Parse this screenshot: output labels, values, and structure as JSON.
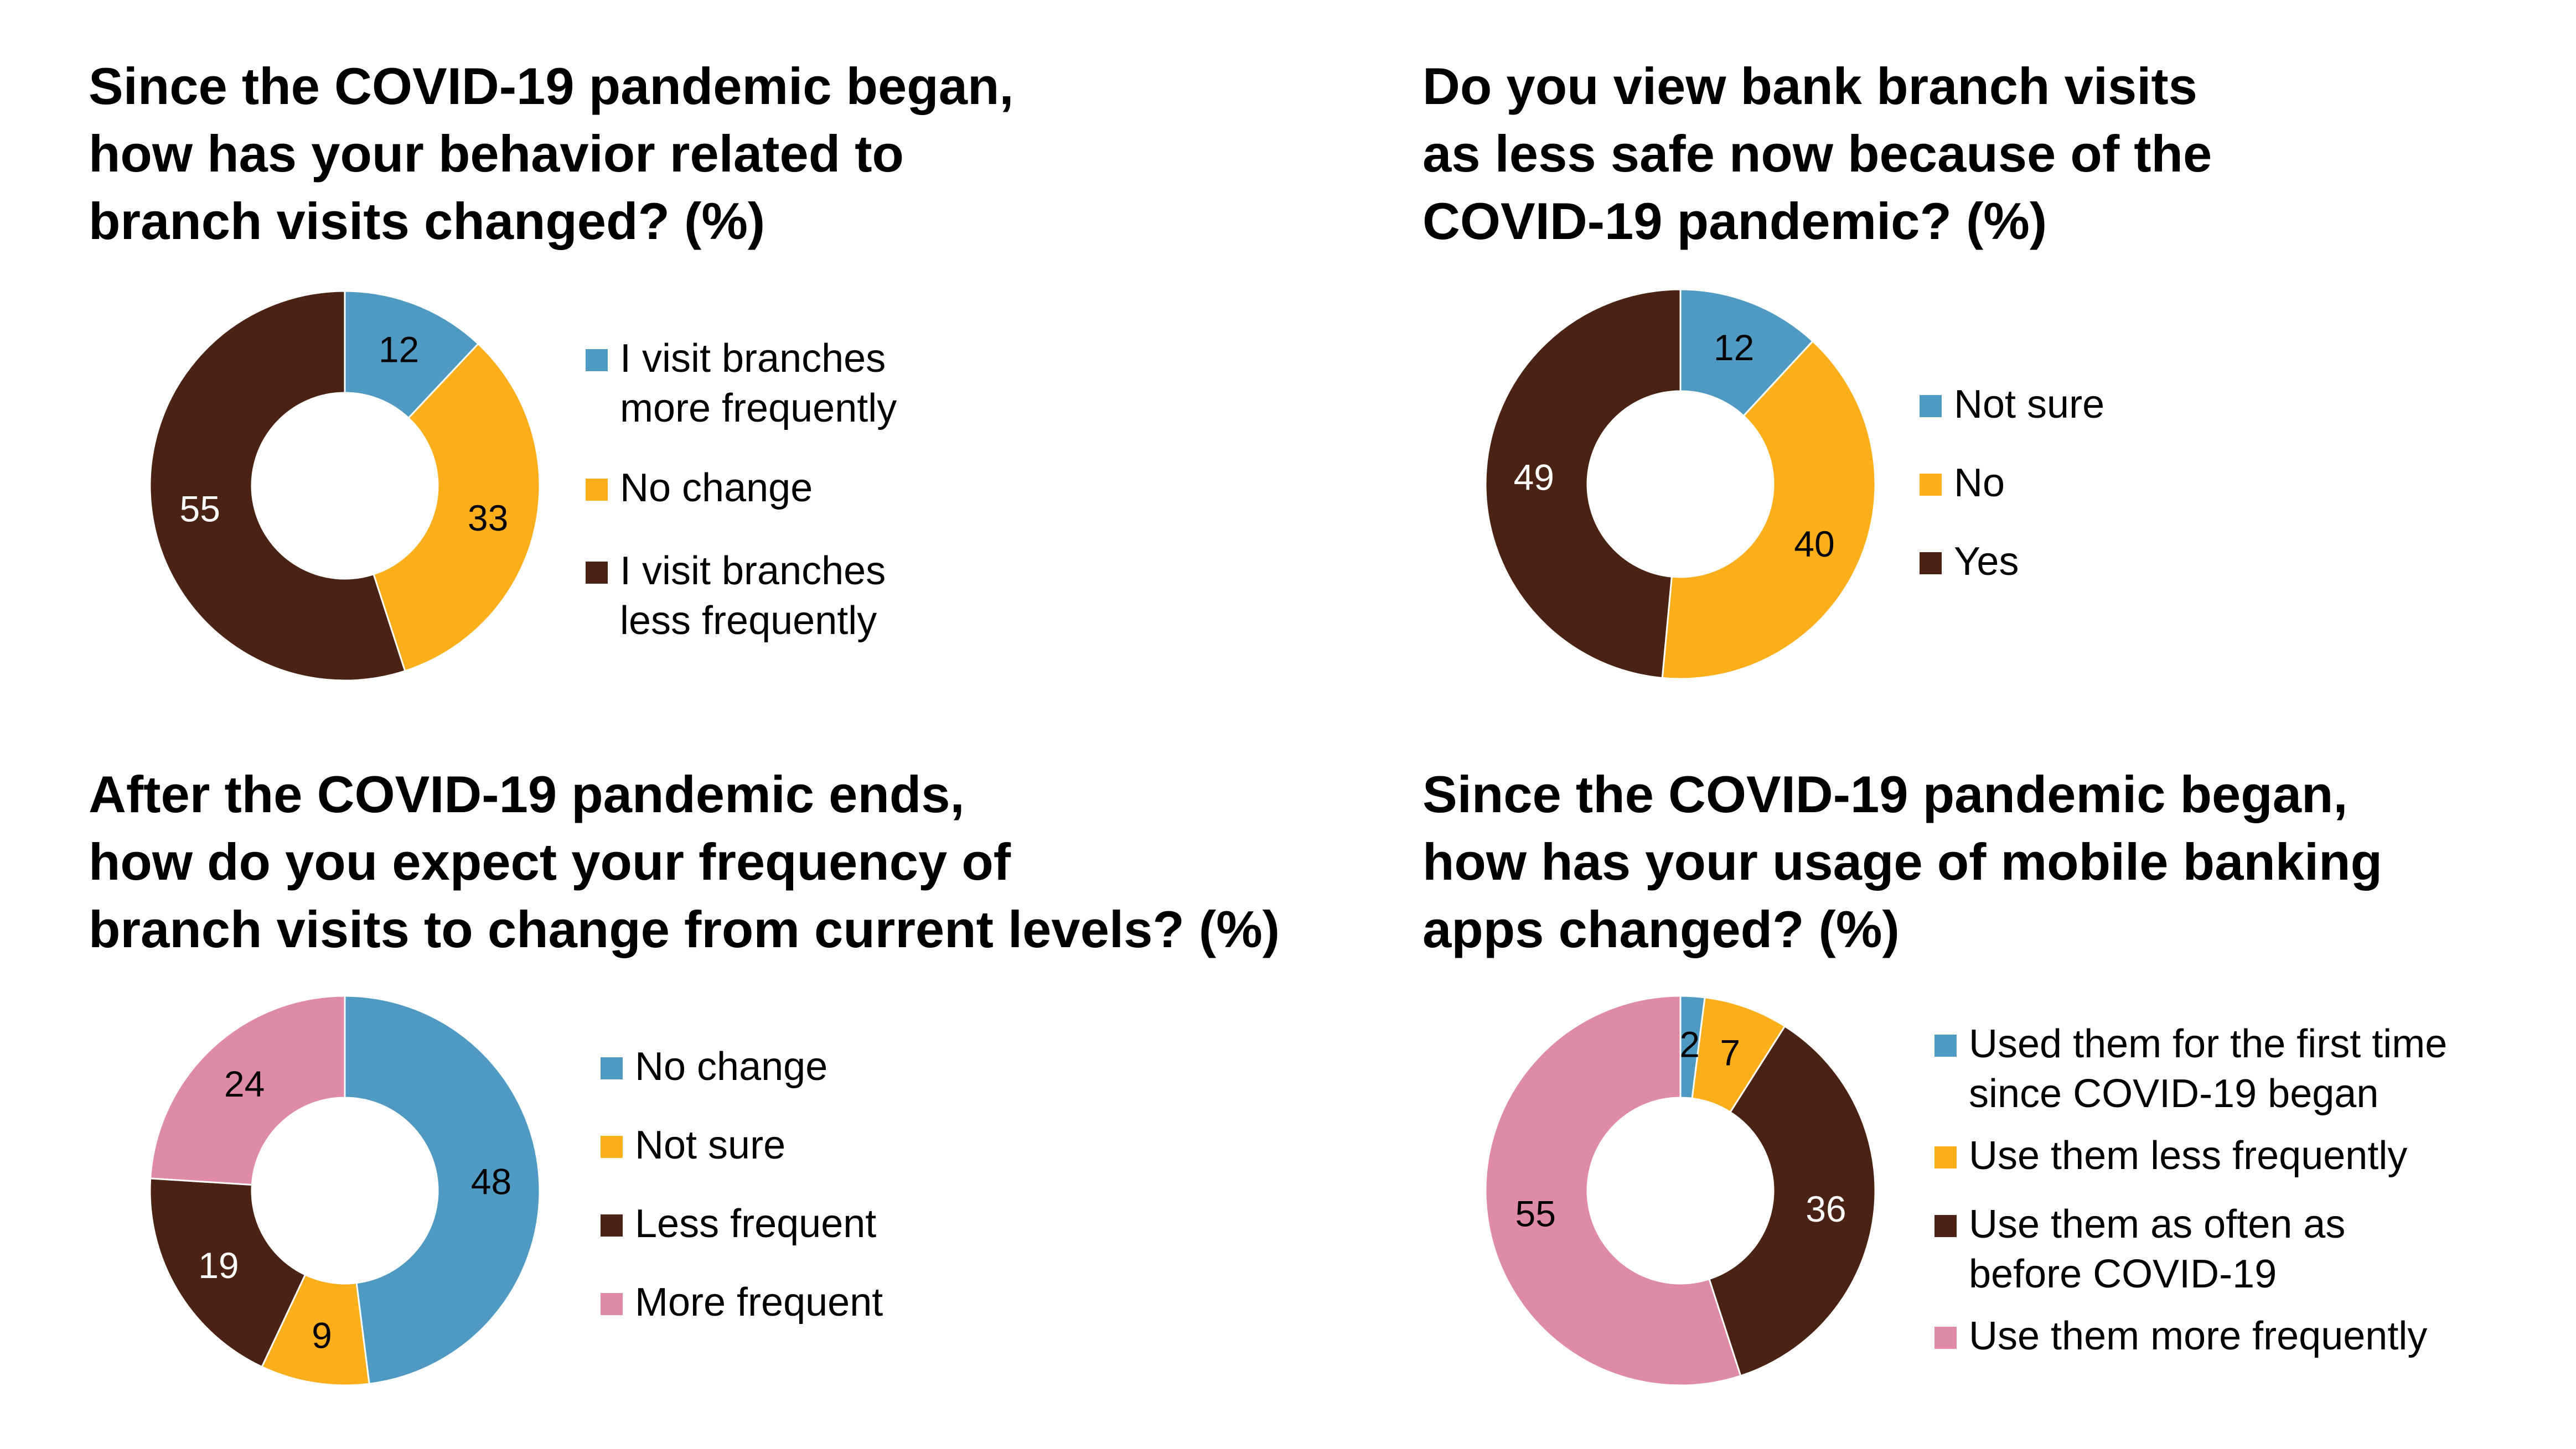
{
  "colors": {
    "blue": "#4f9ac2",
    "orange": "#fdae1b",
    "brown": "#4a2314",
    "pink": "#e08ba5"
  },
  "chart_data": [
    {
      "type": "pie",
      "title_lines": [
        "Since the COVID-19 pandemic began,",
        "how has your behavior related to",
        "branch visits changed? (%)"
      ],
      "categories": [
        "I visit branches more frequently",
        "No change",
        "I visit branches less frequently"
      ],
      "legend_lines": [
        [
          "I visit branches",
          "more frequently"
        ],
        [
          "No change"
        ],
        [
          "I visit branches",
          "less frequently"
        ]
      ],
      "values": [
        12,
        33,
        55
      ],
      "colors": [
        "#4f9ac2",
        "#fdae1b",
        "#4a2314"
      ],
      "label_colors": [
        "#000000",
        "#000000",
        "#ffffff"
      ]
    },
    {
      "type": "pie",
      "title_lines": [
        "Do you view bank branch visits",
        "as less safe now because of the",
        "COVID-19 pandemic? (%)"
      ],
      "categories": [
        "Not sure",
        "No",
        "Yes"
      ],
      "legend_lines": [
        [
          "Not sure"
        ],
        [
          "No"
        ],
        [
          "Yes"
        ]
      ],
      "values": [
        12,
        40,
        49
      ],
      "colors": [
        "#4f9ac2",
        "#fdae1b",
        "#4a2314"
      ],
      "label_colors": [
        "#000000",
        "#000000",
        "#ffffff"
      ]
    },
    {
      "type": "pie",
      "title_lines": [
        "After the COVID-19 pandemic ends,",
        "how do you expect your frequency of",
        "branch visits to change from current levels? (%)"
      ],
      "categories": [
        "No change",
        "Not sure",
        "Less frequent",
        "More frequent"
      ],
      "legend_lines": [
        [
          "No change"
        ],
        [
          "Not sure"
        ],
        [
          "Less frequent"
        ],
        [
          "More frequent"
        ]
      ],
      "values": [
        48,
        9,
        19,
        24
      ],
      "colors": [
        "#4f9ac2",
        "#fdae1b",
        "#4a2314",
        "#e08ba5"
      ],
      "label_colors": [
        "#000000",
        "#000000",
        "#ffffff",
        "#000000"
      ]
    },
    {
      "type": "pie",
      "title_lines": [
        "Since the COVID-19 pandemic began,",
        "how has your usage of mobile banking",
        "apps changed? (%)"
      ],
      "categories": [
        "Used them for the first time since COVID-19 began",
        "Use them less frequently",
        "Use them as often as before COVID-19",
        "Use them more frequently"
      ],
      "legend_lines": [
        [
          "Used them for the first time",
          "since COVID-19 began"
        ],
        [
          "Use them less frequently"
        ],
        [
          "Use them as often as",
          "before COVID-19"
        ],
        [
          "Use them more frequently"
        ]
      ],
      "values": [
        2,
        7,
        36,
        55
      ],
      "colors": [
        "#4f9ac2",
        "#fdae1b",
        "#4a2314",
        "#e08ba5"
      ],
      "label_colors": [
        "#000000",
        "#000000",
        "#ffffff",
        "#000000"
      ]
    }
  ]
}
